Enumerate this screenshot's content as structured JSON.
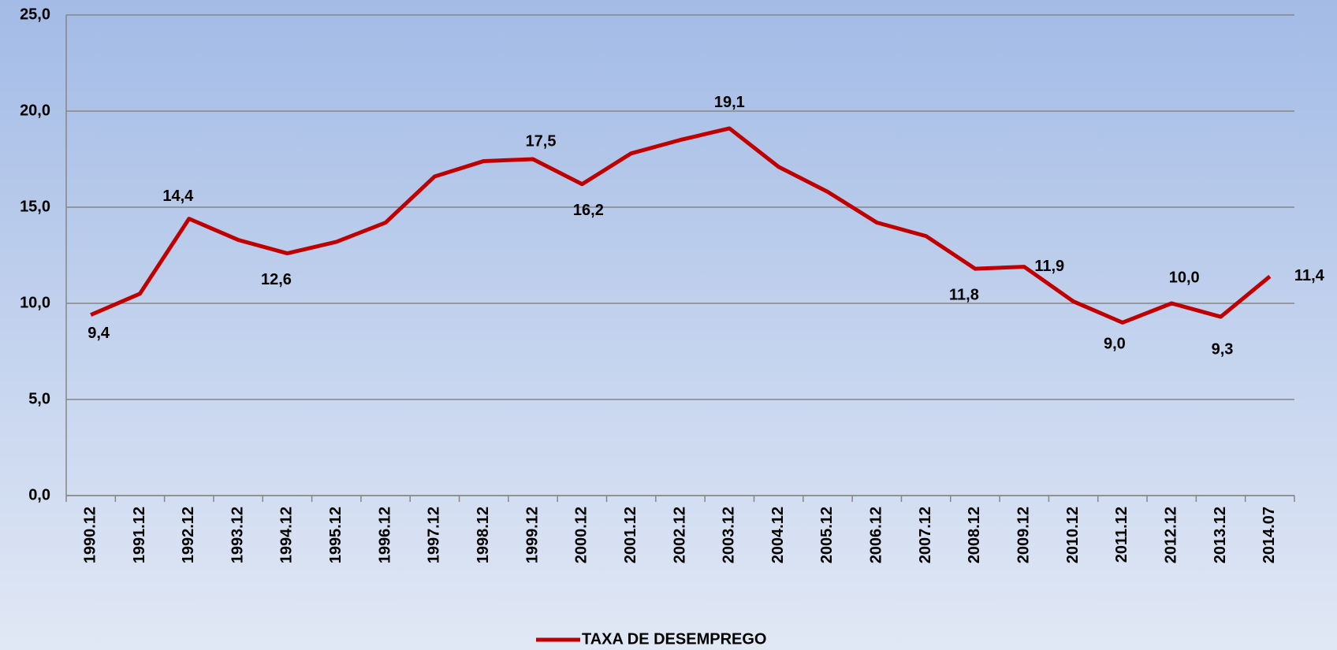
{
  "chart_data": {
    "type": "line",
    "categories": [
      "1990.12",
      "1991.12",
      "1992.12",
      "1993.12",
      "1994.12",
      "1995.12",
      "1996.12",
      "1997.12",
      "1998.12",
      "1999.12",
      "2000.12",
      "2001.12",
      "2002.12",
      "2003.12",
      "2004.12",
      "2005.12",
      "2006.12",
      "2007.12",
      "2008.12",
      "2009.12",
      "2010.12",
      "2011.12",
      "2012.12",
      "2013.12",
      "2014.07"
    ],
    "series": [
      {
        "name": "TAXA DE DESEMPREGO",
        "color": "#c00000",
        "values": [
          9.4,
          10.5,
          14.4,
          13.3,
          12.6,
          13.2,
          14.2,
          16.6,
          17.4,
          17.5,
          16.2,
          17.8,
          18.5,
          19.1,
          17.1,
          15.8,
          14.2,
          13.5,
          11.8,
          11.9,
          10.1,
          9.0,
          10.0,
          9.3,
          11.4
        ],
        "value_labels": [
          "9,4",
          null,
          "14,4",
          null,
          "12,6",
          null,
          null,
          null,
          null,
          "17,5",
          "16,2",
          null,
          null,
          "19,1",
          null,
          null,
          null,
          null,
          "11,8",
          "11,9",
          null,
          "9,0",
          "10,0",
          "9,3",
          "11,4"
        ]
      }
    ],
    "ylim": [
      0,
      25
    ],
    "yticks": [
      {
        "value": 0,
        "label": "0,0"
      },
      {
        "value": 5,
        "label": "5,0"
      },
      {
        "value": 10,
        "label": "10,0"
      },
      {
        "value": 15,
        "label": "15,0"
      },
      {
        "value": 20,
        "label": "20,0"
      },
      {
        "value": 25,
        "label": "25,0"
      }
    ],
    "grid": true,
    "legend": "bottom"
  }
}
